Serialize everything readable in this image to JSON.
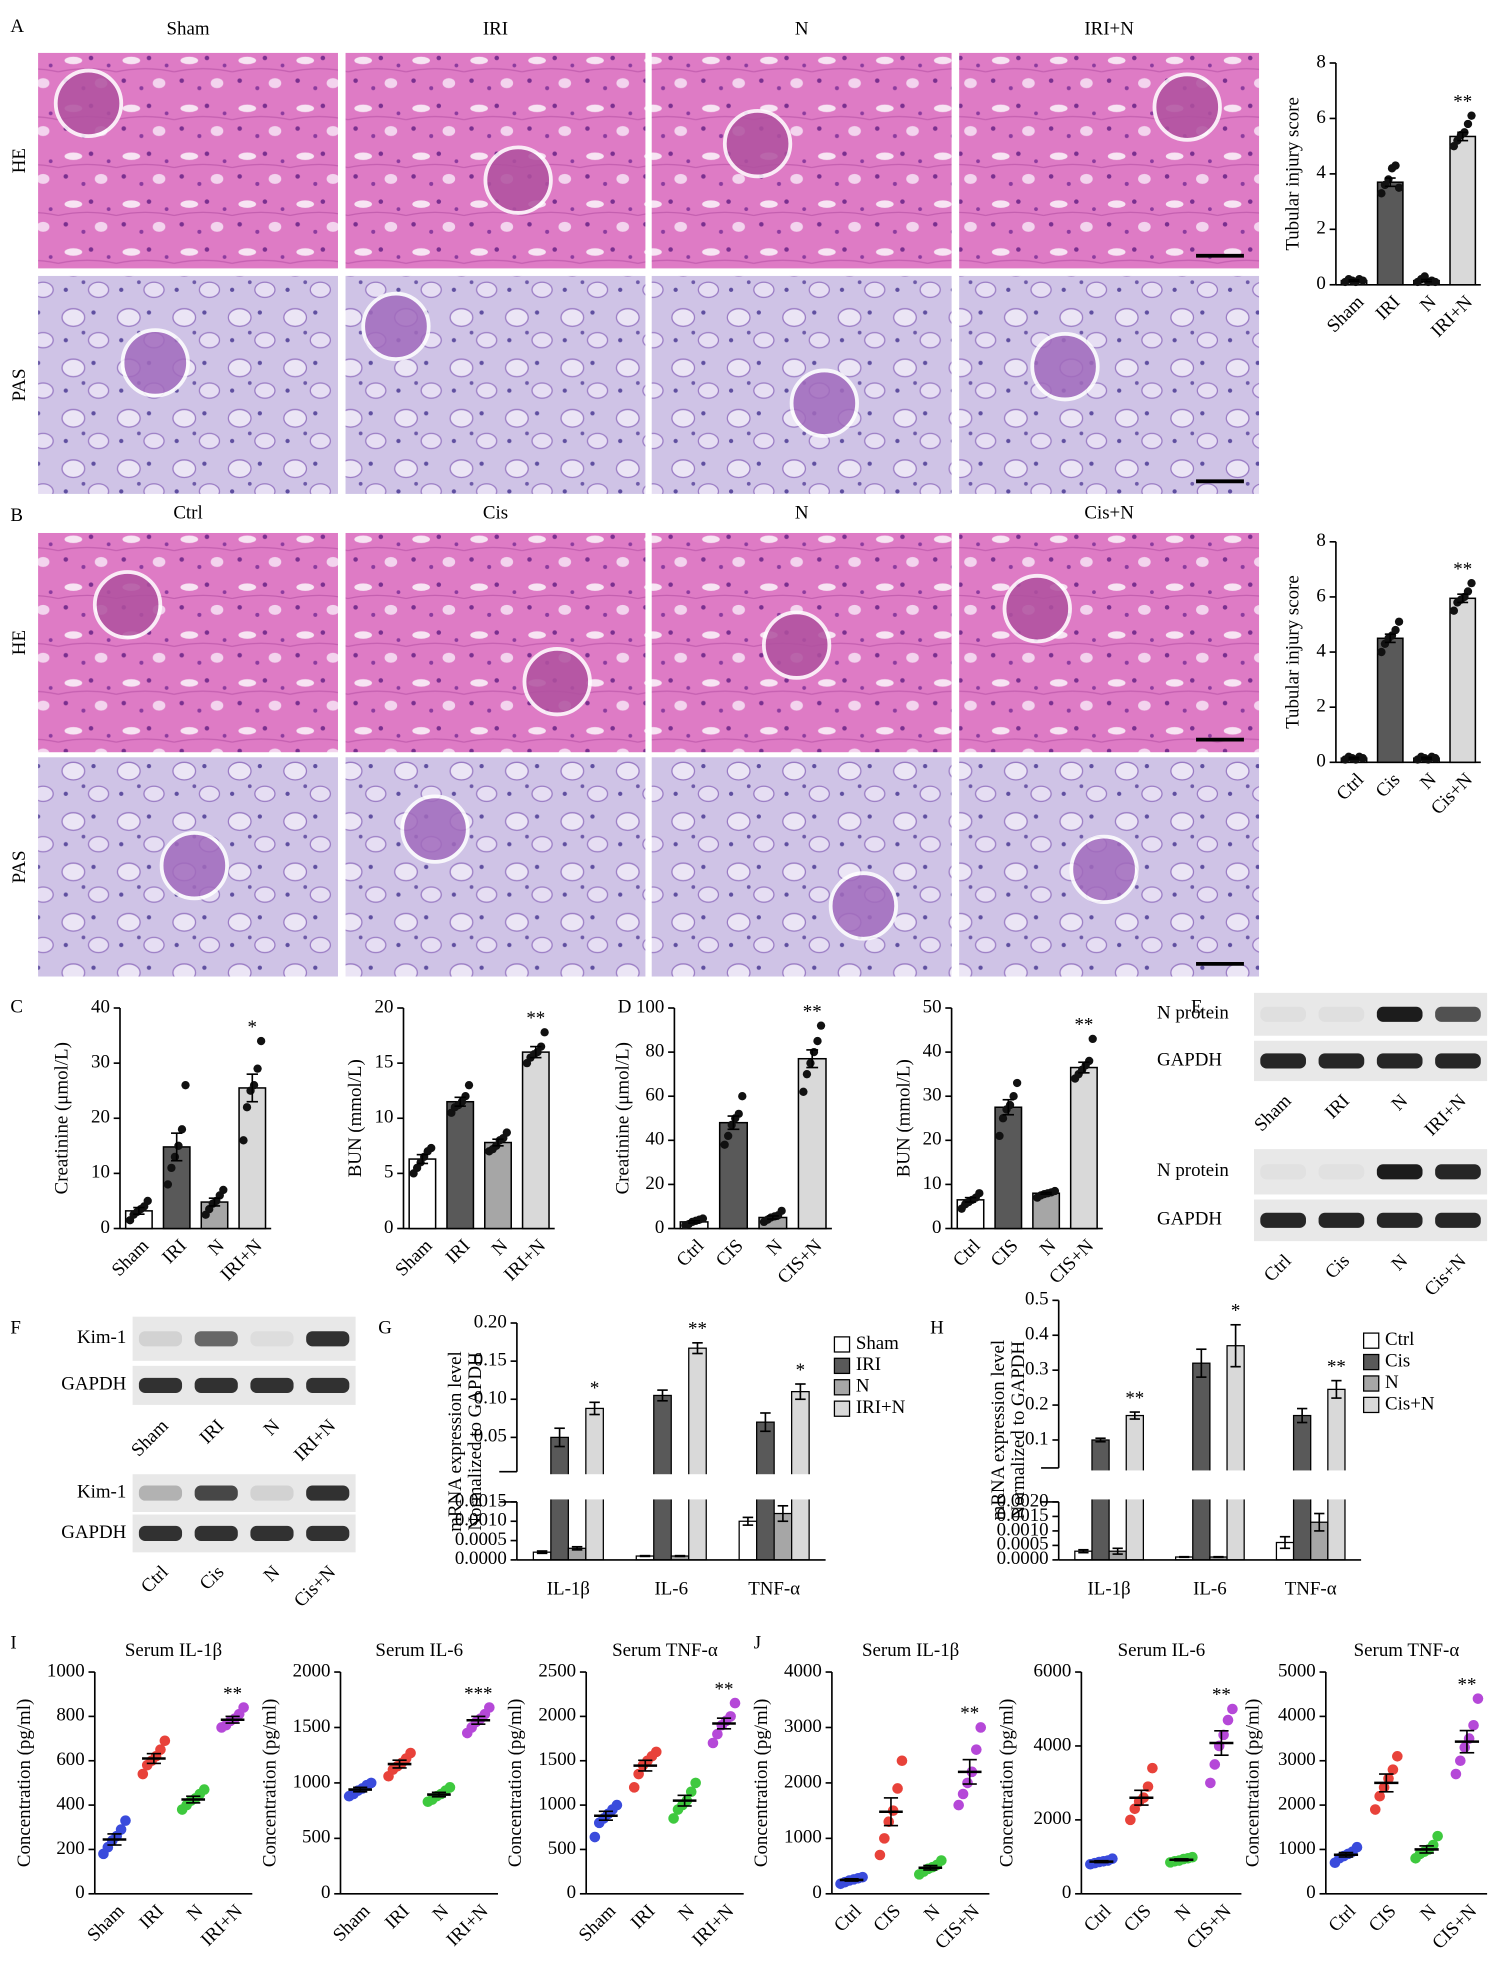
{
  "histology": [
    {
      "letter": "A",
      "columns": [
        "Sham",
        "IRI",
        "N",
        "IRI+N"
      ],
      "rows": [
        "HE",
        "PAS"
      ]
    },
    {
      "letter": "B",
      "columns": [
        "Ctrl",
        "Cis",
        "N",
        "Cis+N"
      ],
      "rows": [
        "HE",
        "PAS"
      ]
    }
  ],
  "blots": [
    {
      "letter": "E",
      "rows": [
        "N protein",
        "GAPDH"
      ],
      "lanes": [
        "Sham",
        "IRI",
        "N",
        "IRI+N"
      ]
    },
    {
      "rows": [
        "N protein",
        "GAPDH"
      ],
      "lanes": [
        "Ctrl",
        "Cis",
        "N",
        "Cis+N"
      ]
    },
    {
      "letter": "F",
      "rows": [
        "Kim-1",
        "GAPDH"
      ],
      "lanes": [
        "Sham",
        "IRI",
        "N",
        "IRI+N"
      ]
    },
    {
      "rows": [
        "Kim-1",
        "GAPDH"
      ],
      "lanes": [
        "Ctrl",
        "Cis",
        "N",
        "Cis+N"
      ]
    }
  ],
  "chart_data": [
    {
      "type": "bar",
      "ylabel": "Tubular injury score",
      "categories": [
        "Sham",
        "IRI",
        "N",
        "IRI+N"
      ],
      "values": [
        0.15,
        3.7,
        0.15,
        5.35
      ],
      "errors": [
        0.03,
        0.15,
        0.04,
        0.15
      ],
      "points": [
        [
          0.1,
          0.2,
          0.15,
          0.1,
          0.2,
          0.15
        ],
        [
          3.3,
          3.6,
          3.8,
          4.2,
          4.3,
          3.5
        ],
        [
          0.1,
          0.2,
          0.3,
          0.1,
          0.15,
          0.1
        ],
        [
          5.0,
          5.2,
          5.4,
          5.5,
          5.8,
          6.1
        ]
      ],
      "colors": [
        "#ffffff",
        "#595959",
        "#a6a6a6",
        "#d9d9d9"
      ],
      "annotations": [
        null,
        null,
        null,
        "**"
      ],
      "ylim": [
        0,
        8
      ],
      "yticks": [
        0,
        2,
        4,
        6,
        8
      ]
    },
    {
      "type": "bar",
      "ylabel": "Tubular injury score",
      "categories": [
        "Ctrl",
        "Cis",
        "N",
        "Cis+N"
      ],
      "values": [
        0.15,
        4.5,
        0.15,
        5.95
      ],
      "errors": [
        0.03,
        0.15,
        0.03,
        0.15
      ],
      "points": [
        [
          0.1,
          0.2,
          0.15,
          0.1,
          0.2,
          0.15
        ],
        [
          4.0,
          4.3,
          4.5,
          4.6,
          4.8,
          5.1
        ],
        [
          0.1,
          0.2,
          0.15,
          0.1,
          0.2,
          0.15
        ],
        [
          5.5,
          5.8,
          5.9,
          6.0,
          6.2,
          6.5
        ]
      ],
      "colors": [
        "#ffffff",
        "#595959",
        "#a6a6a6",
        "#d9d9d9"
      ],
      "annotations": [
        null,
        null,
        null,
        "**"
      ],
      "ylim": [
        0,
        8
      ],
      "yticks": [
        0,
        2,
        4,
        6,
        8
      ]
    },
    {
      "type": "bar",
      "letter": "C",
      "ylabel": "Creatinine (μmol/L)",
      "categories": [
        "Sham",
        "IRI",
        "N",
        "IRI+N"
      ],
      "values": [
        3.2,
        14.8,
        4.8,
        25.5
      ],
      "errors": [
        0.6,
        2.5,
        0.7,
        2.5
      ],
      "points": [
        [
          1.5,
          2.5,
          3,
          3.5,
          4,
          5
        ],
        [
          8,
          11,
          13,
          15,
          18,
          26
        ],
        [
          2.5,
          3.5,
          4.5,
          5,
          6,
          7
        ],
        [
          16,
          22,
          25,
          26,
          29,
          34
        ]
      ],
      "colors": [
        "#ffffff",
        "#595959",
        "#a6a6a6",
        "#d9d9d9"
      ],
      "annotations": [
        null,
        null,
        null,
        "*"
      ],
      "ylim": [
        0,
        40
      ],
      "yticks": [
        0,
        10,
        20,
        30,
        40
      ]
    },
    {
      "type": "bar",
      "ylabel": "BUN (mmol/L)",
      "categories": [
        "Sham",
        "IRI",
        "N",
        "IRI+N"
      ],
      "values": [
        6.3,
        11.5,
        7.8,
        16.0
      ],
      "errors": [
        0.4,
        0.4,
        0.3,
        0.5
      ],
      "points": [
        [
          5,
          5.5,
          6,
          6.5,
          7,
          7.3
        ],
        [
          10.5,
          11,
          11.2,
          11.5,
          12,
          13
        ],
        [
          7,
          7.2,
          7.5,
          8,
          8.2,
          8.7
        ],
        [
          15,
          15.5,
          15.8,
          16,
          16.5,
          17.8
        ]
      ],
      "colors": [
        "#ffffff",
        "#595959",
        "#a6a6a6",
        "#d9d9d9"
      ],
      "annotations": [
        null,
        null,
        null,
        "**"
      ],
      "ylim": [
        0,
        20
      ],
      "yticks": [
        0,
        5,
        10,
        15,
        20
      ]
    },
    {
      "type": "bar",
      "letter": "D",
      "ylabel": "Creatinine (μmol/L)",
      "categories": [
        "Ctrl",
        "CIS",
        "N",
        "CIS+N"
      ],
      "values": [
        3,
        48,
        5,
        77
      ],
      "errors": [
        0.5,
        3,
        0.7,
        4
      ],
      "points": [
        [
          1.5,
          2,
          3,
          3.5,
          4,
          4.5
        ],
        [
          38,
          42,
          47,
          50,
          52,
          60
        ],
        [
          3,
          4,
          5,
          5.5,
          6,
          8
        ],
        [
          62,
          70,
          75,
          80,
          85,
          92
        ]
      ],
      "colors": [
        "#ffffff",
        "#595959",
        "#a6a6a6",
        "#d9d9d9"
      ],
      "annotations": [
        null,
        null,
        null,
        "**"
      ],
      "ylim": [
        0,
        100
      ],
      "yticks": [
        0,
        20,
        40,
        60,
        80,
        100
      ]
    },
    {
      "type": "bar",
      "ylabel": "BUN (mmol/L)",
      "categories": [
        "Ctrl",
        "CIS",
        "N",
        "CIS+N"
      ],
      "values": [
        6.5,
        27.5,
        8,
        36.5
      ],
      "errors": [
        0.5,
        1.7,
        0.2,
        1.2
      ],
      "points": [
        [
          4.5,
          5.5,
          6,
          6.5,
          7,
          8
        ],
        [
          21,
          25,
          27,
          28,
          30,
          33
        ],
        [
          7,
          7.5,
          7.8,
          8,
          8.2,
          8.5
        ],
        [
          34,
          35,
          36,
          37,
          38,
          43
        ]
      ],
      "colors": [
        "#ffffff",
        "#595959",
        "#a6a6a6",
        "#d9d9d9"
      ],
      "annotations": [
        null,
        null,
        null,
        "**"
      ],
      "ylim": [
        0,
        50
      ],
      "yticks": [
        0,
        10,
        20,
        30,
        40,
        50
      ]
    },
    {
      "type": "broken_bar",
      "letter": "G",
      "ylabel": [
        "mRNA expression level",
        "Normalized to GAPDH"
      ],
      "categories": [
        "IL-1β",
        "IL-6",
        "TNF-α"
      ],
      "series": [
        {
          "name": "Sham",
          "color": "#ffffff",
          "values": [
            0.0002,
            0.0001,
            0.001
          ],
          "errors": [
            3e-05,
            1e-05,
            0.0001
          ]
        },
        {
          "name": "IRI",
          "color": "#595959",
          "values": [
            0.05,
            0.105,
            0.07
          ],
          "errors": [
            0.012,
            0.007,
            0.012
          ]
        },
        {
          "name": "N",
          "color": "#a6a6a6",
          "values": [
            0.0003,
            0.0001,
            0.0012
          ],
          "errors": [
            4e-05,
            1e-05,
            0.0002
          ]
        },
        {
          "name": "IRI+N",
          "color": "#d9d9d9",
          "values": [
            0.088,
            0.167,
            0.11
          ],
          "errors": [
            0.008,
            0.007,
            0.01
          ]
        }
      ],
      "annotations": [
        "*",
        "**",
        "*"
      ],
      "ylim": [
        0,
        0.0015
      ],
      "yticks": [
        {
          "value": 0,
          "label": "0.0000"
        },
        0.0005,
        {
          "value": 0.001,
          "label": "0.0010"
        },
        0.0015
      ],
      "ylim_upper": [
        0.005,
        0.2
      ],
      "yticks_upper": [
        0.05,
        {
          "value": 0.1,
          "label": "0.10"
        },
        0.15,
        {
          "value": 0.2,
          "label": "0.20"
        }
      ]
    },
    {
      "type": "broken_bar",
      "letter": "H",
      "ylabel": [
        "mRNA expression level",
        "Normalized to GAPDH"
      ],
      "categories": [
        "IL-1β",
        "IL-6",
        "TNF-α"
      ],
      "series": [
        {
          "name": "Ctrl",
          "color": "#ffffff",
          "values": [
            0.0003,
            0.0001,
            0.0006
          ],
          "errors": [
            5e-05,
            1e-05,
            0.0002
          ]
        },
        {
          "name": "Cis",
          "color": "#595959",
          "values": [
            0.1,
            0.32,
            0.17
          ],
          "errors": [
            0.005,
            0.04,
            0.02
          ]
        },
        {
          "name": "N",
          "color": "#a6a6a6",
          "values": [
            0.0003,
            0.0001,
            0.0013
          ],
          "errors": [
            0.0001,
            1e-05,
            0.0003
          ]
        },
        {
          "name": "Cis+N",
          "color": "#d9d9d9",
          "values": [
            0.17,
            0.37,
            0.245
          ],
          "errors": [
            0.01,
            0.06,
            0.025
          ]
        }
      ],
      "annotations": [
        "**",
        "*",
        "**"
      ],
      "ylim": [
        0,
        0.002
      ],
      "yticks": [
        {
          "value": 0,
          "label": "0.0000"
        },
        0.0005,
        {
          "value": 0.001,
          "label": "0.0010"
        },
        0.0015,
        {
          "value": 0.002,
          "label": "0.0020"
        }
      ],
      "ylim_upper": [
        0.02,
        0.5
      ],
      "yticks_upper": [
        0.1,
        0.2,
        0.3,
        0.4,
        0.5
      ]
    },
    {
      "type": "dot",
      "letter": "I",
      "title": "Serum IL-1β",
      "ylabel": "Concentration (pg/ml)",
      "categories": [
        "Sham",
        "IRI",
        "N",
        "IRI+N"
      ],
      "values": [
        245,
        610,
        425,
        785
      ],
      "errors": [
        25,
        22,
        15,
        15
      ],
      "points": [
        [
          180,
          210,
          240,
          260,
          290,
          330
        ],
        [
          540,
          580,
          600,
          620,
          650,
          690
        ],
        [
          380,
          400,
          420,
          430,
          450,
          470
        ],
        [
          750,
          760,
          780,
          790,
          810,
          840
        ]
      ],
      "colors": [
        "#3a4bdc",
        "#e8423a",
        "#3ec93e",
        "#b548d8"
      ],
      "annotations": [
        null,
        null,
        null,
        "**"
      ],
      "ylim": [
        0,
        1000
      ],
      "yticks": [
        0,
        200,
        400,
        600,
        800,
        1000
      ]
    },
    {
      "type": "dot",
      "title": "Serum IL-6",
      "ylabel": "Concentration (pg/ml)",
      "categories": [
        "Sham",
        "IRI",
        "N",
        "IRI+N"
      ],
      "values": [
        940,
        1170,
        895,
        1565
      ],
      "errors": [
        20,
        35,
        20,
        35
      ],
      "points": [
        [
          880,
          900,
          930,
          950,
          980,
          1000
        ],
        [
          1060,
          1120,
          1150,
          1180,
          1220,
          1270
        ],
        [
          830,
          850,
          880,
          900,
          930,
          960
        ],
        [
          1450,
          1500,
          1550,
          1580,
          1620,
          1680
        ]
      ],
      "colors": [
        "#3a4bdc",
        "#e8423a",
        "#3ec93e",
        "#b548d8"
      ],
      "annotations": [
        null,
        null,
        null,
        "***"
      ],
      "ylim": [
        0,
        2000
      ],
      "yticks": [
        0,
        500,
        1000,
        1500,
        2000
      ]
    },
    {
      "type": "dot",
      "title": "Serum TNF-α",
      "ylabel": "Concentration (pg/ml)",
      "categories": [
        "Sham",
        "IRI",
        "N",
        "IRI+N"
      ],
      "values": [
        880,
        1445,
        1050,
        1920
      ],
      "errors": [
        50,
        60,
        60,
        60
      ],
      "points": [
        [
          640,
          800,
          850,
          900,
          950,
          1000
        ],
        [
          1200,
          1350,
          1450,
          1500,
          1550,
          1600
        ],
        [
          850,
          950,
          1000,
          1050,
          1150,
          1250
        ],
        [
          1700,
          1800,
          1900,
          1950,
          2000,
          2150
        ]
      ],
      "colors": [
        "#3a4bdc",
        "#e8423a",
        "#3ec93e",
        "#b548d8"
      ],
      "annotations": [
        null,
        null,
        null,
        "**"
      ],
      "ylim": [
        0,
        2500
      ],
      "yticks": [
        0,
        500,
        1000,
        1500,
        2000,
        2500
      ]
    },
    {
      "type": "dot",
      "letter": "J",
      "title": "Serum IL-1β",
      "ylabel": "Concentration (pg/ml)",
      "categories": [
        "Ctrl",
        "CIS",
        "N",
        "CIS+N"
      ],
      "values": [
        250,
        1480,
        470,
        2200
      ],
      "errors": [
        20,
        250,
        40,
        220
      ],
      "points": [
        [
          180,
          210,
          240,
          260,
          280,
          300
        ],
        [
          700,
          1000,
          1300,
          1500,
          1900,
          2400
        ],
        [
          350,
          400,
          450,
          480,
          520,
          600
        ],
        [
          1600,
          1800,
          2000,
          2200,
          2600,
          3000
        ]
      ],
      "colors": [
        "#3a4bdc",
        "#e8423a",
        "#3ec93e",
        "#b548d8"
      ],
      "annotations": [
        null,
        null,
        null,
        "**"
      ],
      "ylim": [
        0,
        4000
      ],
      "yticks": [
        0,
        1000,
        2000,
        3000,
        4000
      ]
    },
    {
      "type": "dot",
      "title": "Serum IL-6",
      "ylabel": "Concentration (pg/ml)",
      "categories": [
        "Ctrl",
        "CIS",
        "N",
        "CIS+N"
      ],
      "values": [
        870,
        2600,
        920,
        4080
      ],
      "errors": [
        25,
        200,
        25,
        330
      ],
      "points": [
        [
          800,
          830,
          860,
          880,
          900,
          950
        ],
        [
          2000,
          2300,
          2500,
          2600,
          2900,
          3400
        ],
        [
          850,
          880,
          900,
          940,
          960,
          990
        ],
        [
          3000,
          3500,
          4000,
          4300,
          4700,
          5000
        ]
      ],
      "colors": [
        "#3a4bdc",
        "#e8423a",
        "#3ec93e",
        "#b548d8"
      ],
      "annotations": [
        null,
        null,
        null,
        "**"
      ],
      "ylim": [
        0,
        6000
      ],
      "yticks": [
        0,
        2000,
        4000,
        6000
      ]
    },
    {
      "type": "dot",
      "title": "Serum TNF-α",
      "ylabel": "Concentration (pg/ml)",
      "categories": [
        "Ctrl",
        "CIS",
        "N",
        "CIS+N"
      ],
      "values": [
        880,
        2500,
        1000,
        3430
      ],
      "errors": [
        50,
        200,
        80,
        250
      ],
      "points": [
        [
          700,
          800,
          850,
          900,
          950,
          1050
        ],
        [
          1900,
          2200,
          2400,
          2600,
          2800,
          3100
        ],
        [
          800,
          900,
          950,
          1000,
          1100,
          1300
        ],
        [
          2700,
          3000,
          3300,
          3500,
          3800,
          4400
        ]
      ],
      "colors": [
        "#3a4bdc",
        "#e8423a",
        "#3ec93e",
        "#b548d8"
      ],
      "annotations": [
        null,
        null,
        null,
        "**"
      ],
      "ylim": [
        0,
        5000
      ],
      "yticks": [
        0,
        1000,
        2000,
        3000,
        4000,
        5000
      ]
    }
  ]
}
